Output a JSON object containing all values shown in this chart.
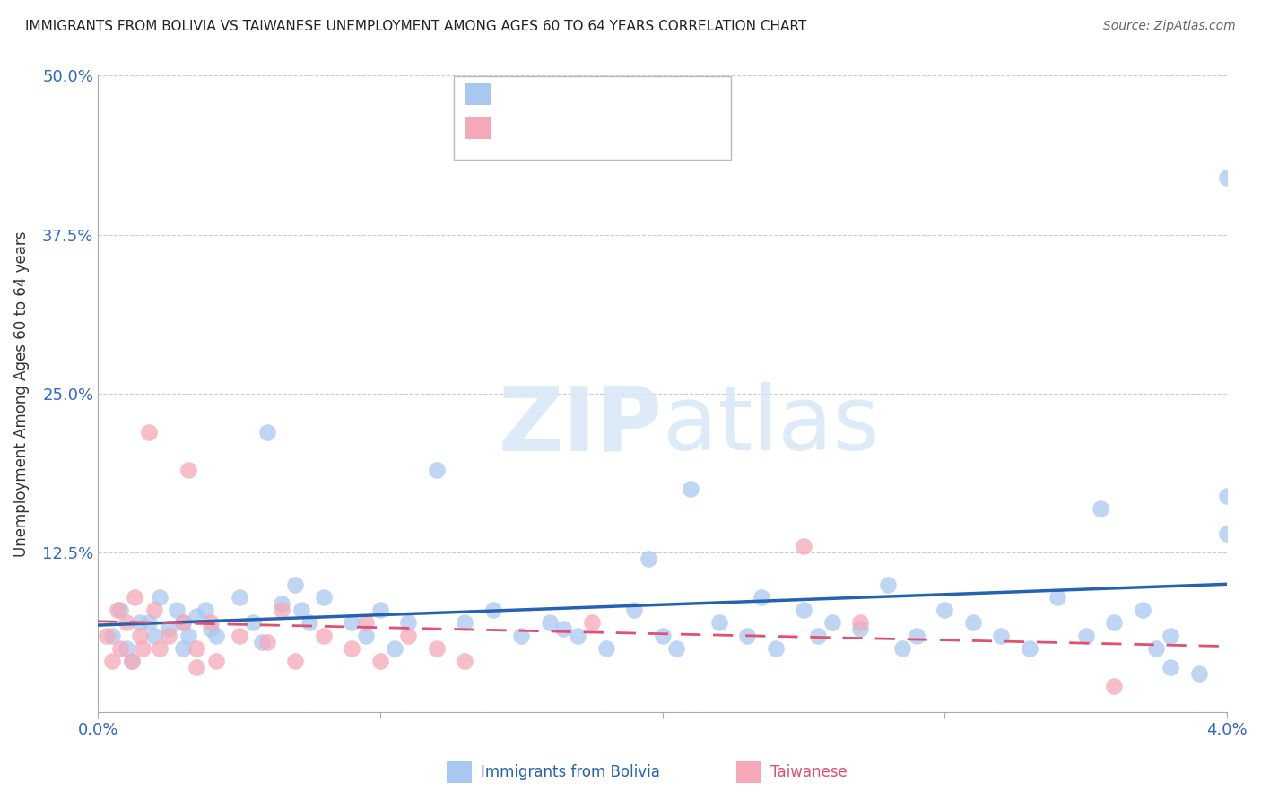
{
  "title": "IMMIGRANTS FROM BOLIVIA VS TAIWANESE UNEMPLOYMENT AMONG AGES 60 TO 64 YEARS CORRELATION CHART",
  "source": "Source: ZipAtlas.com",
  "xlabel_blue": "Immigrants from Bolivia",
  "xlabel_pink": "Taiwanese",
  "ylabel": "Unemployment Among Ages 60 to 64 years",
  "xlim": [
    0.0,
    0.04
  ],
  "ylim": [
    0.0,
    0.5
  ],
  "yticks": [
    0.0,
    0.125,
    0.25,
    0.375,
    0.5
  ],
  "ytick_labels": [
    "",
    "12.5%",
    "25.0%",
    "37.5%",
    "50.0%"
  ],
  "xtick_labels": [
    "0.0%",
    "",
    "",
    "",
    "4.0%"
  ],
  "xticks": [
    0.0,
    0.01,
    0.02,
    0.03,
    0.04
  ],
  "color_blue": "#a8c8f0",
  "color_pink": "#f5a8b8",
  "color_blue_line": "#2563b0",
  "color_pink_line": "#e05070",
  "color_axis_labels": "#3366cc",
  "color_grid": "#cccccc",
  "blue_x": [
    0.0005,
    0.0008,
    0.001,
    0.0012,
    0.0015,
    0.0018,
    0.002,
    0.0022,
    0.0025,
    0.0028,
    0.003,
    0.003,
    0.0032,
    0.0035,
    0.0038,
    0.004,
    0.0042,
    0.005,
    0.0055,
    0.0058,
    0.006,
    0.007,
    0.0072,
    0.0075,
    0.008,
    0.009,
    0.0095,
    0.01,
    0.0105,
    0.011,
    0.012,
    0.013,
    0.014,
    0.015,
    0.016,
    0.017,
    0.018,
    0.019,
    0.02,
    0.0205,
    0.021,
    0.022,
    0.023,
    0.024,
    0.025,
    0.0255,
    0.026,
    0.027,
    0.028,
    0.0285,
    0.029,
    0.03,
    0.031,
    0.032,
    0.033,
    0.034,
    0.035,
    0.036,
    0.037,
    0.0375,
    0.038,
    0.039,
    0.04,
    0.04,
    0.04,
    0.0065,
    0.0165,
    0.0195,
    0.0235,
    0.0355,
    0.038
  ],
  "blue_y": [
    0.06,
    0.08,
    0.05,
    0.04,
    0.07,
    0.07,
    0.06,
    0.09,
    0.065,
    0.08,
    0.05,
    0.07,
    0.06,
    0.075,
    0.08,
    0.065,
    0.06,
    0.09,
    0.07,
    0.055,
    0.22,
    0.1,
    0.08,
    0.07,
    0.09,
    0.07,
    0.06,
    0.08,
    0.05,
    0.07,
    0.19,
    0.07,
    0.08,
    0.06,
    0.07,
    0.06,
    0.05,
    0.08,
    0.06,
    0.05,
    0.175,
    0.07,
    0.06,
    0.05,
    0.08,
    0.06,
    0.07,
    0.065,
    0.1,
    0.05,
    0.06,
    0.08,
    0.07,
    0.06,
    0.05,
    0.09,
    0.06,
    0.07,
    0.08,
    0.05,
    0.06,
    0.03,
    0.14,
    0.17,
    0.42,
    0.085,
    0.065,
    0.12,
    0.09,
    0.16,
    0.035
  ],
  "pink_x": [
    0.0003,
    0.0005,
    0.0007,
    0.0008,
    0.001,
    0.0012,
    0.0013,
    0.0015,
    0.0016,
    0.0018,
    0.002,
    0.0022,
    0.0025,
    0.003,
    0.0032,
    0.0035,
    0.004,
    0.0042,
    0.005,
    0.006,
    0.0065,
    0.007,
    0.008,
    0.009,
    0.0095,
    0.01,
    0.011,
    0.012,
    0.013,
    0.0175,
    0.025,
    0.027,
    0.0035,
    0.036
  ],
  "pink_y": [
    0.06,
    0.04,
    0.08,
    0.05,
    0.07,
    0.04,
    0.09,
    0.06,
    0.05,
    0.22,
    0.08,
    0.05,
    0.06,
    0.07,
    0.19,
    0.05,
    0.07,
    0.04,
    0.06,
    0.055,
    0.08,
    0.04,
    0.06,
    0.05,
    0.07,
    0.04,
    0.06,
    0.05,
    0.04,
    0.07,
    0.13,
    0.07,
    0.035,
    0.02
  ]
}
